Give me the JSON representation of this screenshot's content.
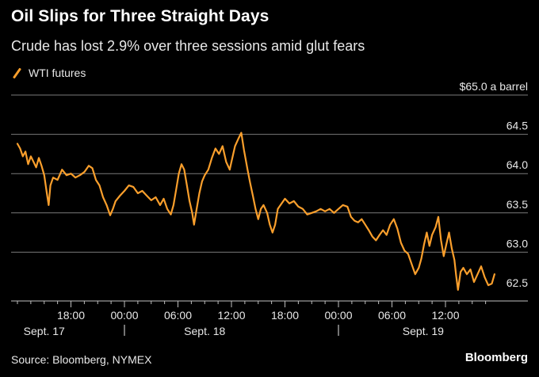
{
  "header": {
    "title": "Oil Slips for Three Straight Days",
    "subtitle": "Crude has lost 2.9% over three sessions amid glut fears"
  },
  "legend": {
    "label": "WTI futures"
  },
  "footer": {
    "source": "Source: Bloomberg, NYMEX",
    "brand": "Bloomberg"
  },
  "colors": {
    "line": "#fa9f2c",
    "grid": "#7a7a7a",
    "axis": "#bfbfbf",
    "background": "#000000"
  },
  "chart_data": {
    "type": "line",
    "title": "Oil Slips for Three Straight Days",
    "subtitle": "Crude has lost 2.9% over three sessions amid glut fears",
    "y_unit_label": "$65.0 a barrel",
    "ylim": [
      62.5,
      65.0
    ],
    "yticks": [
      62.5,
      63.0,
      63.5,
      64.0,
      64.5,
      65.0
    ],
    "ytick_labels": [
      "62.5",
      "63.0",
      "63.5",
      "64.0",
      "64.5",
      "$65.0 a barrel"
    ],
    "xlim_hours": [
      0,
      56
    ],
    "xtick_labels": [
      "18:00",
      "00:00",
      "06:00",
      "12:00",
      "18:00",
      "00:00",
      "06:00",
      "12:00"
    ],
    "date_labels": [
      "Sept. 17",
      "Sept. 18",
      "Sept. 19"
    ],
    "grid": true,
    "series": [
      {
        "name": "WTI futures",
        "points": [
          [
            0.0,
            64.38
          ],
          [
            0.3,
            64.32
          ],
          [
            0.6,
            64.22
          ],
          [
            0.9,
            64.28
          ],
          [
            1.2,
            64.12
          ],
          [
            1.5,
            64.22
          ],
          [
            1.8,
            64.15
          ],
          [
            2.1,
            64.08
          ],
          [
            2.4,
            64.2
          ],
          [
            2.7,
            64.1
          ],
          [
            3.0,
            63.98
          ],
          [
            3.3,
            63.75
          ],
          [
            3.5,
            63.6
          ],
          [
            3.7,
            63.85
          ],
          [
            4.0,
            63.95
          ],
          [
            4.5,
            63.92
          ],
          [
            5.0,
            64.05
          ],
          [
            5.5,
            63.98
          ],
          [
            6.0,
            64.0
          ],
          [
            6.5,
            63.95
          ],
          [
            7.0,
            63.98
          ],
          [
            7.5,
            64.02
          ],
          [
            8.0,
            64.1
          ],
          [
            8.4,
            64.07
          ],
          [
            8.8,
            63.92
          ],
          [
            9.2,
            63.85
          ],
          [
            9.6,
            63.7
          ],
          [
            10.0,
            63.6
          ],
          [
            10.4,
            63.47
          ],
          [
            10.7,
            63.55
          ],
          [
            11.0,
            63.65
          ],
          [
            11.5,
            63.72
          ],
          [
            12.0,
            63.78
          ],
          [
            12.5,
            63.85
          ],
          [
            13.0,
            63.83
          ],
          [
            13.5,
            63.75
          ],
          [
            14.0,
            63.78
          ],
          [
            14.5,
            63.72
          ],
          [
            15.0,
            63.66
          ],
          [
            15.5,
            63.7
          ],
          [
            16.0,
            63.6
          ],
          [
            16.4,
            63.68
          ],
          [
            16.8,
            63.55
          ],
          [
            17.2,
            63.48
          ],
          [
            17.5,
            63.6
          ],
          [
            17.8,
            63.8
          ],
          [
            18.1,
            64.0
          ],
          [
            18.4,
            64.12
          ],
          [
            18.7,
            64.05
          ],
          [
            19.0,
            63.85
          ],
          [
            19.3,
            63.65
          ],
          [
            19.6,
            63.5
          ],
          [
            19.8,
            63.35
          ],
          [
            20.1,
            63.55
          ],
          [
            20.4,
            63.75
          ],
          [
            20.7,
            63.9
          ],
          [
            21.0,
            63.98
          ],
          [
            21.4,
            64.05
          ],
          [
            21.8,
            64.2
          ],
          [
            22.2,
            64.32
          ],
          [
            22.6,
            64.25
          ],
          [
            23.0,
            64.35
          ],
          [
            23.4,
            64.15
          ],
          [
            23.8,
            64.05
          ],
          [
            24.0,
            64.15
          ],
          [
            24.4,
            64.35
          ],
          [
            24.8,
            64.45
          ],
          [
            25.1,
            64.52
          ],
          [
            25.4,
            64.3
          ],
          [
            25.8,
            64.05
          ],
          [
            26.1,
            63.88
          ],
          [
            26.4,
            63.72
          ],
          [
            26.7,
            63.55
          ],
          [
            27.0,
            63.42
          ],
          [
            27.3,
            63.55
          ],
          [
            27.6,
            63.6
          ],
          [
            28.0,
            63.5
          ],
          [
            28.3,
            63.35
          ],
          [
            28.6,
            63.25
          ],
          [
            28.9,
            63.35
          ],
          [
            29.2,
            63.55
          ],
          [
            29.5,
            63.6
          ],
          [
            30.0,
            63.68
          ],
          [
            30.5,
            63.62
          ],
          [
            31.0,
            63.65
          ],
          [
            31.5,
            63.58
          ],
          [
            32.0,
            63.55
          ],
          [
            32.5,
            63.48
          ],
          [
            33.0,
            63.5
          ],
          [
            33.5,
            63.52
          ],
          [
            34.0,
            63.55
          ],
          [
            34.5,
            63.52
          ],
          [
            35.0,
            63.55
          ],
          [
            35.5,
            63.5
          ],
          [
            36.0,
            63.55
          ],
          [
            36.5,
            63.6
          ],
          [
            37.0,
            63.58
          ],
          [
            37.4,
            63.45
          ],
          [
            37.8,
            63.4
          ],
          [
            38.2,
            63.38
          ],
          [
            38.6,
            63.42
          ],
          [
            39.0,
            63.35
          ],
          [
            39.4,
            63.28
          ],
          [
            39.8,
            63.2
          ],
          [
            40.2,
            63.15
          ],
          [
            40.6,
            63.22
          ],
          [
            41.0,
            63.28
          ],
          [
            41.4,
            63.22
          ],
          [
            41.8,
            63.35
          ],
          [
            42.2,
            63.42
          ],
          [
            42.6,
            63.3
          ],
          [
            43.0,
            63.12
          ],
          [
            43.4,
            63.02
          ],
          [
            43.8,
            62.98
          ],
          [
            44.2,
            62.85
          ],
          [
            44.6,
            62.72
          ],
          [
            45.0,
            62.8
          ],
          [
            45.3,
            62.92
          ],
          [
            45.6,
            63.1
          ],
          [
            45.9,
            63.25
          ],
          [
            46.2,
            63.08
          ],
          [
            46.5,
            63.22
          ],
          [
            46.9,
            63.32
          ],
          [
            47.2,
            63.45
          ],
          [
            47.5,
            63.15
          ],
          [
            47.8,
            62.95
          ],
          [
            48.1,
            63.1
          ],
          [
            48.4,
            63.25
          ],
          [
            48.7,
            63.05
          ],
          [
            49.0,
            62.9
          ],
          [
            49.2,
            62.7
          ],
          [
            49.4,
            62.52
          ],
          [
            49.7,
            62.75
          ],
          [
            50.0,
            62.8
          ],
          [
            50.4,
            62.72
          ],
          [
            50.8,
            62.78
          ],
          [
            51.2,
            62.62
          ],
          [
            51.6,
            62.72
          ],
          [
            52.0,
            62.82
          ],
          [
            52.4,
            62.68
          ],
          [
            52.8,
            62.58
          ],
          [
            53.2,
            62.6
          ],
          [
            53.5,
            62.72
          ]
        ]
      }
    ]
  }
}
